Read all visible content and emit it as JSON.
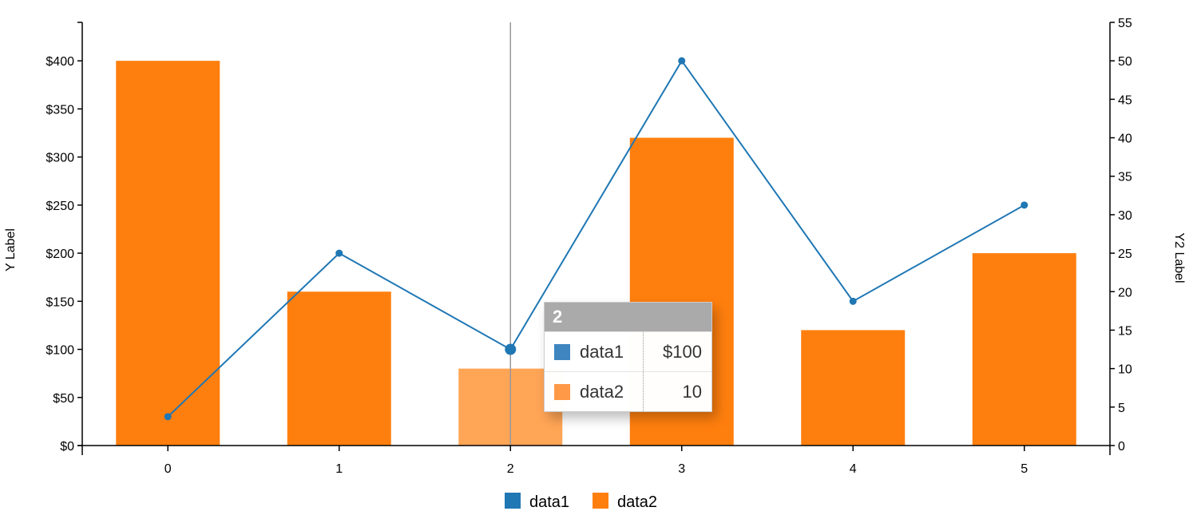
{
  "chart_data": {
    "type": "bar",
    "categories": [
      "0",
      "1",
      "2",
      "3",
      "4",
      "5"
    ],
    "series": [
      {
        "name": "data1",
        "type": "line",
        "axis": "y",
        "color": "#1f77b4",
        "values": [
          30,
          200,
          100,
          400,
          150,
          250
        ]
      },
      {
        "name": "data2",
        "type": "bar",
        "axis": "y2",
        "color": "#ff7f0e",
        "values": [
          50,
          20,
          10,
          40,
          15,
          25
        ]
      }
    ],
    "y": {
      "label": "Y Label",
      "ylim": [
        0,
        440
      ],
      "ticks": [
        0,
        50,
        100,
        150,
        200,
        250,
        300,
        350,
        400
      ],
      "tick_labels": [
        "$0",
        "$50",
        "$100",
        "$150",
        "$200",
        "$250",
        "$300",
        "$350",
        "$400"
      ]
    },
    "y2": {
      "label": "Y2 Label",
      "ylim": [
        0,
        55
      ],
      "ticks": [
        0,
        5,
        10,
        15,
        20,
        25,
        30,
        35,
        40,
        45,
        50,
        55
      ],
      "tick_labels": [
        "0",
        "5",
        "10",
        "15",
        "20",
        "25",
        "30",
        "35",
        "40",
        "45",
        "50",
        "55"
      ]
    },
    "grid": false,
    "legend_position": "bottom"
  },
  "legend": [
    {
      "label": "data1",
      "color": "#1f77b4"
    },
    {
      "label": "data2",
      "color": "#ff7f0e"
    }
  ],
  "tooltip": {
    "title": "2",
    "rows": [
      {
        "name": "data1",
        "value": "$100",
        "color": "#1f77b4"
      },
      {
        "name": "data2",
        "value": "10",
        "color": "#ff7f0e"
      }
    ]
  },
  "focus_index": 2
}
